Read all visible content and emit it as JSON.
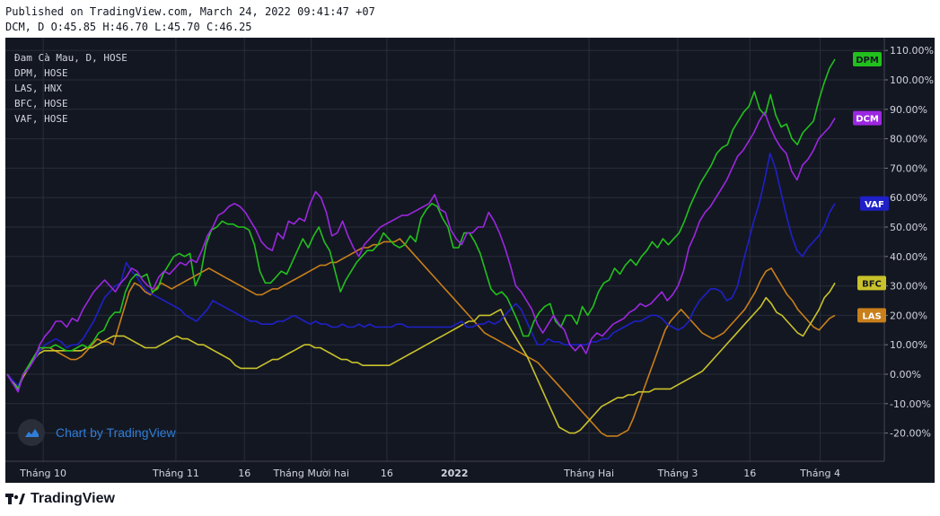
{
  "header": {
    "published": "Published on TradingView.com, March 24, 2022 09:41:47 +07",
    "ohlc": "DCM, D O:45.85 H:46.70 L:45.70 C:46.25"
  },
  "legend": [
    "Đam Cà Mau, D, HOSE",
    "DPM, HOSE",
    "LAS, HNX",
    "BFC, HOSE",
    "VAF, HOSE"
  ],
  "watermark": {
    "text": "Chart by TradingView",
    "icon": "tradingview-cloud-icon"
  },
  "brand": {
    "text": "TradingView",
    "icon": "tradingview-logo-icon"
  },
  "colors": {
    "background": "#131722",
    "grid": "#2a2e39",
    "axis_text": "#d1d4dc",
    "DPM": "#22c01c",
    "DCM": "#9c27e0",
    "VAF": "#1f20c8",
    "BFC": "#c9c22a",
    "LAS": "#c97f1a"
  },
  "chart_data": {
    "type": "line",
    "ylabel_unit": "%",
    "ylim": [
      -30,
      112
    ],
    "y_ticks": [
      110,
      100,
      90,
      80,
      70,
      60,
      50,
      40,
      30,
      20,
      10,
      0,
      -10,
      -20
    ],
    "y_tick_labels": [
      "110.00%",
      "100.00%",
      "90.00%",
      "80.00%",
      "70.00%",
      "60.00%",
      "50.00%",
      "40.00%",
      "30.00%",
      "20.00%",
      "10.00%",
      "0.00%",
      "-10.00%",
      "-20.00%"
    ],
    "x_ticks": [
      {
        "label": "Tháng 10",
        "t": 0.043
      },
      {
        "label": "Tháng 11",
        "t": 0.194
      },
      {
        "label": "16",
        "t": 0.272
      },
      {
        "label": "Tháng Mười hai",
        "t": 0.348
      },
      {
        "label": "16",
        "t": 0.434
      },
      {
        "label": "2022",
        "t": 0.511
      },
      {
        "label": "Tháng Hai",
        "t": 0.664
      },
      {
        "label": "Tháng 3",
        "t": 0.765
      },
      {
        "label": "16",
        "t": 0.847
      },
      {
        "label": "Tháng 4",
        "t": 0.927
      }
    ],
    "grid": true,
    "legend_position": "top-left",
    "series": [
      {
        "name": "DPM",
        "label": "DPM",
        "color": "#22c01c",
        "values": [
          0,
          -3,
          -5,
          0,
          3,
          6,
          9,
          9,
          9,
          10,
          9,
          8,
          8,
          9,
          10,
          9,
          11,
          14,
          15,
          19,
          21,
          21,
          28,
          32,
          34,
          33,
          34,
          28,
          29,
          34,
          37,
          40,
          41,
          40,
          41,
          30,
          34,
          44,
          49,
          50,
          52,
          51,
          51,
          50,
          50,
          49,
          44,
          35,
          31,
          31,
          33,
          35,
          34,
          38,
          42,
          46,
          43,
          47,
          50,
          45,
          42,
          35,
          28,
          32,
          35,
          38,
          40,
          42,
          42,
          44,
          48,
          46,
          44,
          43,
          44,
          47,
          45,
          53,
          56,
          58,
          57,
          53,
          50,
          43,
          43,
          48,
          48,
          45,
          41,
          35,
          29,
          27,
          28,
          26,
          22,
          18,
          13,
          13,
          18,
          21,
          23,
          24,
          18,
          16,
          20,
          20,
          17,
          23,
          20,
          23,
          28,
          31,
          32,
          36,
          34,
          37,
          39,
          37,
          40,
          42,
          45,
          43,
          46,
          44,
          46,
          48,
          52,
          57,
          61,
          65,
          68,
          71,
          75,
          77,
          78,
          83,
          86,
          89,
          91,
          96,
          90,
          88,
          95,
          88,
          84,
          85,
          80,
          78,
          82,
          84,
          86,
          93,
          99,
          104,
          107
        ]
      },
      {
        "name": "DCM",
        "label": "DCM",
        "color": "#9c27e0",
        "values": [
          0,
          -3,
          -6,
          0,
          2,
          5,
          10,
          13,
          15,
          18,
          18,
          16,
          19,
          18,
          22,
          25,
          28,
          30,
          32,
          30,
          28,
          31,
          33,
          36,
          35,
          32,
          30,
          29,
          33,
          35,
          34,
          36,
          38,
          37,
          39,
          38,
          42,
          47,
          50,
          54,
          55,
          57,
          58,
          57,
          55,
          52,
          49,
          45,
          43,
          42,
          48,
          46,
          52,
          51,
          53,
          52,
          58,
          62,
          60,
          55,
          47,
          48,
          52,
          47,
          43,
          40,
          44,
          46,
          48,
          50,
          51,
          52,
          53,
          54,
          54,
          55,
          56,
          57,
          58,
          61,
          56,
          55,
          49,
          46,
          44,
          48,
          48,
          50,
          50,
          55,
          52,
          48,
          43,
          37,
          30,
          28,
          25,
          22,
          17,
          14,
          17,
          20,
          17,
          15,
          10,
          8,
          10,
          7,
          12,
          14,
          13,
          15,
          17,
          18,
          19,
          21,
          22,
          24,
          23,
          24,
          26,
          28,
          25,
          27,
          30,
          35,
          43,
          47,
          52,
          55,
          57,
          60,
          63,
          66,
          70,
          74,
          76,
          79,
          82,
          86,
          89,
          84,
          80,
          77,
          75,
          69,
          66,
          71,
          73,
          76,
          80,
          82,
          84,
          87
        ]
      },
      {
        "name": "VAF",
        "label": "VAF",
        "color": "#1f20c8",
        "values": [
          0,
          -2,
          -4,
          0,
          2,
          5,
          8,
          10,
          11,
          12,
          11,
          9,
          10,
          10,
          12,
          15,
          18,
          22,
          26,
          28,
          30,
          31,
          38,
          35,
          33,
          30,
          28,
          27,
          26,
          25,
          24,
          23,
          22,
          20,
          19,
          18,
          20,
          22,
          25,
          24,
          23,
          22,
          21,
          20,
          19,
          18,
          18,
          17,
          17,
          17,
          18,
          18,
          19,
          20,
          19,
          18,
          17,
          18,
          17,
          17,
          16,
          16,
          17,
          16,
          16,
          17,
          16,
          17,
          16,
          16,
          16,
          16,
          17,
          17,
          16,
          16,
          16,
          16,
          16,
          16,
          16,
          16,
          16,
          17,
          18,
          16,
          16,
          17,
          17,
          18,
          17,
          18,
          20,
          22,
          24,
          22,
          18,
          14,
          10,
          10,
          12,
          11,
          11,
          10,
          10,
          10,
          10,
          10,
          11,
          11,
          12,
          12,
          14,
          15,
          16,
          17,
          18,
          18,
          19,
          20,
          20,
          19,
          17,
          16,
          15,
          16,
          18,
          22,
          25,
          27,
          29,
          29,
          28,
          25,
          26,
          30,
          38,
          45,
          52,
          58,
          66,
          75,
          70,
          62,
          54,
          47,
          42,
          40,
          43,
          45,
          47,
          50,
          55,
          58
        ]
      },
      {
        "name": "BFC",
        "label": "BFC",
        "color": "#c9c22a",
        "values": [
          0,
          -2,
          -5,
          -1,
          2,
          5,
          7,
          8,
          8,
          8,
          8,
          8,
          8,
          8,
          8,
          9,
          9,
          10,
          11,
          12,
          13,
          13,
          13,
          12,
          11,
          10,
          9,
          9,
          9,
          10,
          11,
          12,
          13,
          12,
          12,
          11,
          10,
          10,
          9,
          8,
          7,
          6,
          5,
          3,
          2,
          2,
          2,
          2,
          3,
          4,
          5,
          5,
          6,
          7,
          8,
          9,
          10,
          10,
          9,
          9,
          8,
          7,
          6,
          5,
          5,
          4,
          4,
          3,
          3,
          3,
          3,
          3,
          3,
          4,
          5,
          6,
          7,
          8,
          9,
          10,
          11,
          12,
          13,
          14,
          15,
          16,
          17,
          18,
          18,
          20,
          20,
          20,
          21,
          22,
          18,
          15,
          12,
          9,
          6,
          2,
          -2,
          -6,
          -10,
          -14,
          -18,
          -19,
          -20,
          -20,
          -19,
          -17,
          -15,
          -13,
          -11,
          -10,
          -9,
          -8,
          -8,
          -7,
          -7,
          -6,
          -6,
          -6,
          -5,
          -5,
          -5,
          -5,
          -4,
          -3,
          -2,
          -1,
          0,
          1,
          3,
          5,
          7,
          9,
          11,
          13,
          15,
          17,
          19,
          21,
          23,
          26,
          24,
          21,
          20,
          18,
          16,
          14,
          13,
          16,
          19,
          22,
          26,
          28,
          31
        ]
      },
      {
        "name": "LAS",
        "label": "LAS",
        "color": "#c97f1a",
        "values": [
          0,
          -2,
          -5,
          0,
          2,
          5,
          8,
          9,
          9,
          8,
          7,
          6,
          5,
          5,
          6,
          8,
          10,
          12,
          11,
          11,
          10,
          16,
          22,
          28,
          31,
          30,
          28,
          27,
          29,
          31,
          30,
          29,
          30,
          31,
          32,
          33,
          34,
          35,
          36,
          35,
          34,
          33,
          32,
          31,
          30,
          29,
          28,
          27,
          27,
          28,
          29,
          29,
          30,
          31,
          32,
          33,
          34,
          35,
          36,
          37,
          37,
          38,
          38,
          39,
          40,
          41,
          42,
          43,
          43,
          44,
          44,
          45,
          45,
          45,
          46,
          44,
          42,
          40,
          38,
          36,
          34,
          32,
          30,
          28,
          26,
          24,
          22,
          20,
          18,
          16,
          14,
          13,
          12,
          11,
          10,
          9,
          8,
          7,
          6,
          5,
          4,
          2,
          0,
          -2,
          -4,
          -6,
          -8,
          -10,
          -12,
          -14,
          -16,
          -18,
          -20,
          -21,
          -21,
          -21,
          -20,
          -19,
          -15,
          -10,
          -5,
          0,
          5,
          10,
          15,
          18,
          20,
          22,
          20,
          18,
          16,
          14,
          13,
          12,
          13,
          14,
          16,
          18,
          20,
          22,
          25,
          28,
          32,
          35,
          36,
          33,
          30,
          27,
          25,
          22,
          20,
          18,
          16,
          15,
          17,
          19,
          20
        ]
      }
    ]
  }
}
